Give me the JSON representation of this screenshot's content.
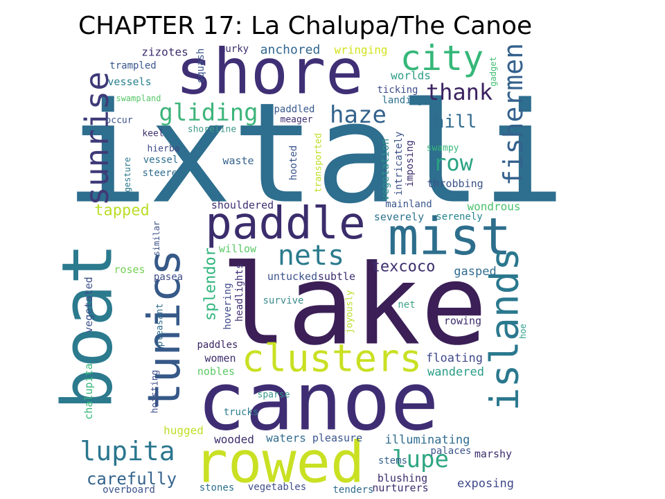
{
  "title": "CHAPTER 17: La Chalupa/The Canoe",
  "words": [
    {
      "text": "ixtali",
      "color": "#2e6e8e"
    },
    {
      "text": "lake",
      "color": "#3b1f56"
    },
    {
      "text": "canoe",
      "color": "#3f2d74"
    },
    {
      "text": "shore",
      "color": "#3f2f75"
    },
    {
      "text": "boat",
      "color": "#2b7a8e"
    },
    {
      "text": "rowed",
      "color": "#c9e023"
    },
    {
      "text": "mist",
      "color": "#2d6e8c"
    },
    {
      "text": "paddle",
      "color": "#3b2d6c"
    },
    {
      "text": "tunics",
      "color": "#365988"
    },
    {
      "text": "islands",
      "color": "#2a788e"
    },
    {
      "text": "clusters",
      "color": "#c9e023"
    },
    {
      "text": "city",
      "color": "#35b779"
    },
    {
      "text": "sunrise",
      "color": "#3e3a78"
    },
    {
      "text": "fishermen",
      "color": "#34618d"
    },
    {
      "text": "nets",
      "color": "#2b7b8d"
    },
    {
      "text": "lupita",
      "color": "#2a768e"
    },
    {
      "text": "gliding",
      "color": "#3db47a"
    },
    {
      "text": "haze",
      "color": "#33628c"
    },
    {
      "text": "thank",
      "color": "#3b2360"
    },
    {
      "text": "row",
      "color": "#2aa383"
    },
    {
      "text": "hill",
      "color": "#2f6b8e"
    },
    {
      "text": "lupe",
      "color": "#2ea583"
    },
    {
      "text": "carefully",
      "color": "#33638d"
    },
    {
      "text": "splendor",
      "color": "#2fb47c"
    },
    {
      "text": "tapped",
      "color": "#bade28"
    },
    {
      "text": "texcoco",
      "color": "#3b2e6c"
    },
    {
      "text": "anchored",
      "color": "#31668e"
    },
    {
      "text": "zizotes",
      "color": "#3b2c6b"
    },
    {
      "text": "wringing",
      "color": "#d2e21b"
    },
    {
      "text": "worlds",
      "color": "#2e9c87"
    },
    {
      "text": "vessels",
      "color": "#27808e"
    },
    {
      "text": "trampled",
      "color": "#39568c"
    },
    {
      "text": "squash",
      "color": "#3b558c"
    },
    {
      "text": "murky",
      "color": "#3a2c6b"
    },
    {
      "text": "gadget",
      "color": "#40bd72"
    },
    {
      "text": "ticking",
      "color": "#3e4c8a"
    },
    {
      "text": "landing",
      "color": "#2c718e"
    },
    {
      "text": "swampland",
      "color": "#56c667"
    },
    {
      "text": "occur",
      "color": "#3b528b"
    },
    {
      "text": "paddled",
      "color": "#38598c"
    },
    {
      "text": "meager",
      "color": "#3e2f72"
    },
    {
      "text": "shoreline",
      "color": "#3f9986"
    },
    {
      "text": "keel",
      "color": "#3b2f70"
    },
    {
      "text": "hierba",
      "color": "#3e4989"
    },
    {
      "text": "vessel",
      "color": "#2d708e"
    },
    {
      "text": "gesture",
      "color": "#2a788e"
    },
    {
      "text": "steered",
      "color": "#2f6b8e"
    },
    {
      "text": "waste",
      "color": "#34618d"
    },
    {
      "text": "hooted",
      "color": "#3b558c"
    },
    {
      "text": "transported",
      "color": "#bddf26"
    },
    {
      "text": "vegetation",
      "color": "#2d8f8c"
    },
    {
      "text": "intricately",
      "color": "#3c528b"
    },
    {
      "text": "imposing",
      "color": "#3b2c6b"
    },
    {
      "text": "swampy",
      "color": "#35b779"
    },
    {
      "text": "throbbing",
      "color": "#3b528b"
    },
    {
      "text": "shouldered",
      "color": "#3e2f72"
    },
    {
      "text": "mainland",
      "color": "#39568c"
    },
    {
      "text": "wondrous",
      "color": "#4ac16d"
    },
    {
      "text": "severely",
      "color": "#2c718e"
    },
    {
      "text": "serenely",
      "color": "#25848e"
    },
    {
      "text": "similar",
      "color": "#3b528b"
    },
    {
      "text": "willow",
      "color": "#5ac864"
    },
    {
      "text": "roses",
      "color": "#73d055"
    },
    {
      "text": "gasped",
      "color": "#2f6b8e"
    },
    {
      "text": "pasea",
      "color": "#3e4c8a"
    },
    {
      "text": "untucked",
      "color": "#3b528b"
    },
    {
      "text": "subtle",
      "color": "#3b2c6b"
    },
    {
      "text": "vegetated",
      "color": "#3c508b"
    },
    {
      "text": "pleasant",
      "color": "#2f6b8e"
    },
    {
      "text": "hovering",
      "color": "#3e4989"
    },
    {
      "text": "headlights",
      "color": "#3f2f75"
    },
    {
      "text": "survive",
      "color": "#3b8b8c"
    },
    {
      "text": "joyously",
      "color": "#bade28"
    },
    {
      "text": "net",
      "color": "#3ca386"
    },
    {
      "text": "rowing",
      "color": "#3b2c6b"
    },
    {
      "text": "hoe",
      "color": "#2a9d87"
    },
    {
      "text": "paddles",
      "color": "#3b2360"
    },
    {
      "text": "floating",
      "color": "#3f4889"
    },
    {
      "text": "women",
      "color": "#3b2c6b"
    },
    {
      "text": "wandered",
      "color": "#2a9d87"
    },
    {
      "text": "chalupita",
      "color": "#35b779"
    },
    {
      "text": "hoisting",
      "color": "#3e4c8a"
    },
    {
      "text": "nobles",
      "color": "#5ac864"
    },
    {
      "text": "sparse",
      "color": "#39968a"
    },
    {
      "text": "trucks",
      "color": "#2d7c8e"
    },
    {
      "text": "hugged",
      "color": "#bddf26"
    },
    {
      "text": "wooded",
      "color": "#3b2c6b"
    },
    {
      "text": "waters",
      "color": "#2f6b8e"
    },
    {
      "text": "pleasure",
      "color": "#39568c"
    },
    {
      "text": "illuminating",
      "color": "#2f6b8e"
    },
    {
      "text": "palaces",
      "color": "#3b528b"
    },
    {
      "text": "marshy",
      "color": "#3b2c6b"
    },
    {
      "text": "stems",
      "color": "#34618d"
    },
    {
      "text": "blushing",
      "color": "#3b2c6b"
    },
    {
      "text": "exposing",
      "color": "#3f4889"
    },
    {
      "text": "overboard",
      "color": "#3b528b"
    },
    {
      "text": "stones",
      "color": "#2d708e"
    },
    {
      "text": "vegetables",
      "color": "#3e4c8a"
    },
    {
      "text": "tenders",
      "color": "#2f6b8e"
    },
    {
      "text": "nurturers",
      "color": "#3b2c6b"
    }
  ]
}
